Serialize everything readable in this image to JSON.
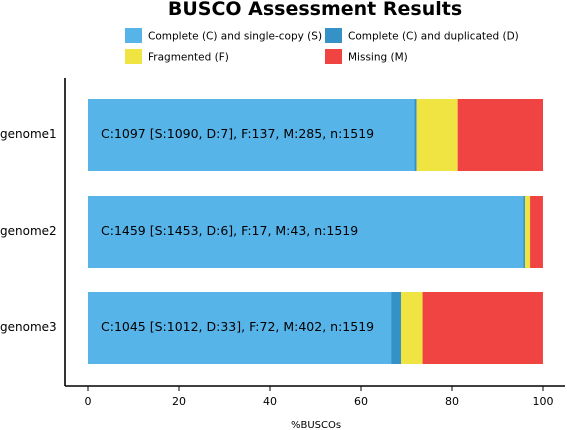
{
  "chart_data": {
    "type": "bar",
    "orientation": "horizontal",
    "stacked": true,
    "title": "BUSCO Assessment Results",
    "xlabel": "%BUSCOs",
    "ylabel": "",
    "xlim": [
      0,
      100
    ],
    "xticks": [
      "0",
      "20",
      "40",
      "60",
      "80",
      "100"
    ],
    "categories": [
      "genome1",
      "genome2",
      "genome3"
    ],
    "series": [
      {
        "name": "Complete (C) and single-copy (S)",
        "color": "#56b4e9",
        "values": [
          71.76,
          95.65,
          66.62
        ]
      },
      {
        "name": "Complete (C) and duplicated (D)",
        "color": "#3492c7",
        "values": [
          0.46,
          0.39,
          2.17
        ]
      },
      {
        "name": "Fragmented (F)",
        "color": "#f0e442",
        "values": [
          9.02,
          1.12,
          4.74
        ]
      },
      {
        "name": "Missing (M)",
        "color": "#f04442",
        "values": [
          18.76,
          2.83,
          26.46
        ]
      }
    ],
    "bar_labels": [
      "C:1097 [S:1090, D:7], F:137, M:285, n:1519",
      "C:1459 [S:1453, D:6], F:17, M:43, n:1519",
      "C:1045 [S:1012, D:33], F:72, M:402, n:1519"
    ],
    "legend_position": "top",
    "grid": false
  }
}
